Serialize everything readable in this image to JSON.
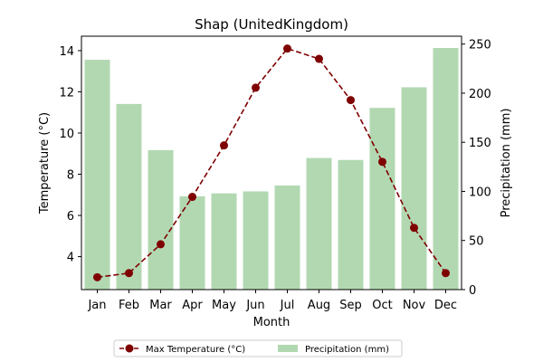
{
  "chart_data": {
    "type": "bar",
    "title": "Shap (UnitedKingdom)",
    "xlabel": "Month",
    "categories": [
      "Jan",
      "Feb",
      "Mar",
      "Apr",
      "May",
      "Jun",
      "Jul",
      "Aug",
      "Sep",
      "Oct",
      "Nov",
      "Dec"
    ],
    "series": [
      {
        "name": "Max Temperature (°C)",
        "type": "line",
        "axis": "left",
        "color": "#7f0000",
        "line_style": "dashed",
        "marker": "circle",
        "values": [
          3.0,
          3.2,
          4.6,
          6.9,
          9.4,
          12.2,
          14.1,
          13.6,
          11.6,
          8.6,
          5.4,
          3.2
        ]
      },
      {
        "name": "Precipitation (mm)",
        "type": "bar",
        "axis": "right",
        "color": "#b2d8b2",
        "values": [
          234,
          189,
          142,
          95,
          98,
          100,
          106,
          134,
          132,
          185,
          206,
          246
        ]
      }
    ],
    "y_left": {
      "label": "Temperature (°C)",
      "color": "#ff0000",
      "ylim": [
        2.4,
        14.7
      ],
      "ticks": [
        4,
        6,
        8,
        10,
        12,
        14
      ]
    },
    "y_right": {
      "label": "Precipitation (mm)",
      "color": "#008000",
      "ylim": [
        0,
        258
      ],
      "ticks": [
        0,
        50,
        100,
        150,
        200,
        250
      ]
    },
    "grid": false,
    "legend": {
      "placement": "bottom-center",
      "columns": 2
    }
  }
}
